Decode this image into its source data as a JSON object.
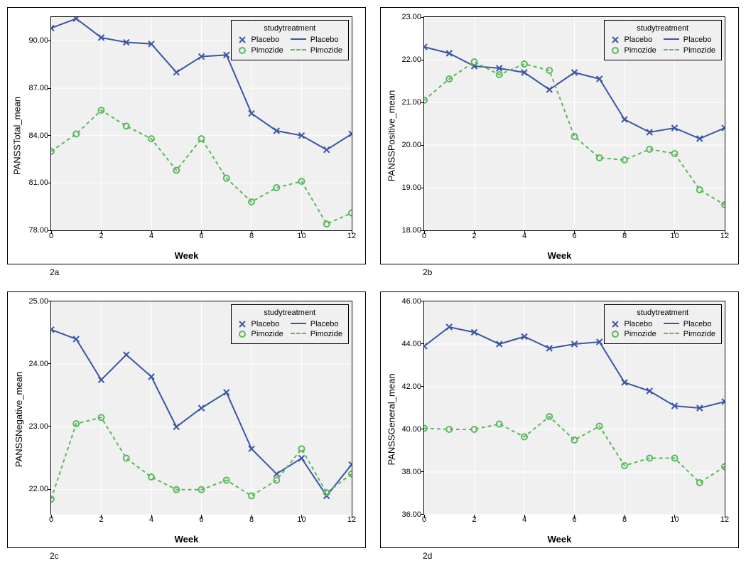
{
  "colors": {
    "placebo": "#3a55a4",
    "pimozide": "#5bb85b",
    "plot_bg": "#f0f0f0",
    "grid": "#ffffff",
    "border": "#000000"
  },
  "legend": {
    "title": "studytreatment",
    "series": [
      {
        "name": "Placebo",
        "color_key": "placebo",
        "marker": "x",
        "dash": "none"
      },
      {
        "name": "Pimozide",
        "color_key": "pimozide",
        "marker": "o",
        "dash": "5,4"
      }
    ]
  },
  "shared": {
    "xlabel": "Week",
    "xticks": [
      0,
      2,
      4,
      6,
      8,
      10,
      12
    ],
    "xlim": [
      0,
      12
    ],
    "label_fontsize": 13,
    "tick_fontsize": 11,
    "legend_fontsize": 11
  },
  "panels": {
    "a": {
      "caption": "2a",
      "ylabel": "PANSSTotal_mean",
      "ylim": [
        78.0,
        91.5
      ],
      "yticks": [
        78.0,
        81.0,
        84.0,
        87.0,
        90.0
      ],
      "ytick_labels": [
        "78.00",
        "81.00",
        "84.00",
        "87.00",
        "90.00"
      ],
      "series": {
        "placebo": {
          "x": [
            0,
            1,
            2,
            3,
            4,
            5,
            6,
            7,
            8,
            9,
            10,
            11,
            12
          ],
          "y": [
            90.8,
            91.4,
            90.2,
            89.9,
            89.8,
            88.0,
            89.0,
            89.1,
            85.4,
            84.3,
            84.0,
            83.1,
            84.1
          ]
        },
        "pimozide": {
          "x": [
            0,
            1,
            2,
            3,
            4,
            5,
            6,
            7,
            8,
            9,
            10,
            11,
            12
          ],
          "y": [
            83.0,
            84.1,
            85.6,
            84.6,
            83.8,
            81.8,
            83.8,
            81.3,
            79.8,
            80.7,
            81.1,
            78.4,
            79.1
          ]
        }
      }
    },
    "b": {
      "caption": "2b",
      "ylabel": "PANSSPositive_mean",
      "ylim": [
        18.0,
        23.0
      ],
      "yticks": [
        18.0,
        19.0,
        20.0,
        21.0,
        22.0,
        23.0
      ],
      "ytick_labels": [
        "18.00",
        "19.00",
        "20.00",
        "21.00",
        "22.00",
        "23.00"
      ],
      "series": {
        "placebo": {
          "x": [
            0,
            1,
            2,
            3,
            4,
            5,
            6,
            7,
            8,
            9,
            10,
            11,
            12
          ],
          "y": [
            22.3,
            22.15,
            21.85,
            21.8,
            21.7,
            21.3,
            21.7,
            21.55,
            20.6,
            20.3,
            20.4,
            20.15,
            20.4
          ]
        },
        "pimozide": {
          "x": [
            0,
            1,
            2,
            3,
            4,
            5,
            6,
            7,
            8,
            9,
            10,
            11,
            12
          ],
          "y": [
            21.05,
            21.55,
            21.95,
            21.65,
            21.9,
            21.75,
            20.2,
            19.7,
            19.65,
            19.9,
            19.8,
            18.95,
            18.6
          ]
        }
      }
    },
    "c": {
      "caption": "2c",
      "ylabel": "PANSSNegative_mean",
      "ylim": [
        21.6,
        25.0
      ],
      "yticks": [
        22.0,
        23.0,
        24.0,
        25.0
      ],
      "ytick_labels": [
        "22.00",
        "23.00",
        "24.00",
        "25.00"
      ],
      "series": {
        "placebo": {
          "x": [
            0,
            1,
            2,
            3,
            4,
            5,
            6,
            7,
            8,
            9,
            10,
            11,
            12
          ],
          "y": [
            24.55,
            24.4,
            23.75,
            24.15,
            23.8,
            23.0,
            23.3,
            23.55,
            22.65,
            22.25,
            22.5,
            21.9,
            22.4
          ]
        },
        "pimozide": {
          "x": [
            0,
            1,
            2,
            3,
            4,
            5,
            6,
            7,
            8,
            9,
            10,
            11,
            12
          ],
          "y": [
            21.85,
            23.05,
            23.15,
            22.5,
            22.2,
            22.0,
            22.0,
            22.15,
            21.9,
            22.15,
            22.65,
            21.95,
            22.25
          ]
        }
      }
    },
    "d": {
      "caption": "2d",
      "ylabel": "PANSSGeneral_mean",
      "ylim": [
        36.0,
        46.0
      ],
      "yticks": [
        36.0,
        38.0,
        40.0,
        42.0,
        44.0,
        46.0
      ],
      "ytick_labels": [
        "36.00",
        "38.00",
        "40.00",
        "42.00",
        "44.00",
        "46.00"
      ],
      "series": {
        "placebo": {
          "x": [
            0,
            1,
            2,
            3,
            4,
            5,
            6,
            7,
            8,
            9,
            10,
            11,
            12
          ],
          "y": [
            43.9,
            44.8,
            44.55,
            44.0,
            44.35,
            43.8,
            44.0,
            44.1,
            42.2,
            41.8,
            41.1,
            41.0,
            41.3
          ]
        },
        "pimozide": {
          "x": [
            0,
            1,
            2,
            3,
            4,
            5,
            6,
            7,
            8,
            9,
            10,
            11,
            12
          ],
          "y": [
            40.05,
            40.0,
            40.0,
            40.25,
            39.65,
            40.6,
            39.5,
            40.15,
            38.3,
            38.65,
            38.65,
            37.5,
            38.25
          ]
        }
      }
    }
  }
}
